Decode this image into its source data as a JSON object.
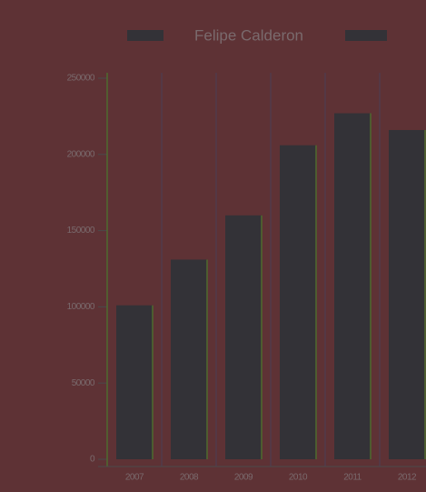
{
  "chart_data": {
    "type": "bar",
    "categories": [
      "2007",
      "2008",
      "2009",
      "2010",
      "2011",
      "2012"
    ],
    "series": [
      {
        "name": "Felipe Calderon",
        "color": "#333237",
        "values": [
          101000,
          131000,
          160000,
          206000,
          227000,
          216000
        ]
      }
    ],
    "ylim": [
      0,
      250000
    ],
    "yticks": [
      0,
      50000,
      100000,
      150000,
      200000,
      250000
    ],
    "grid": true
  }
}
